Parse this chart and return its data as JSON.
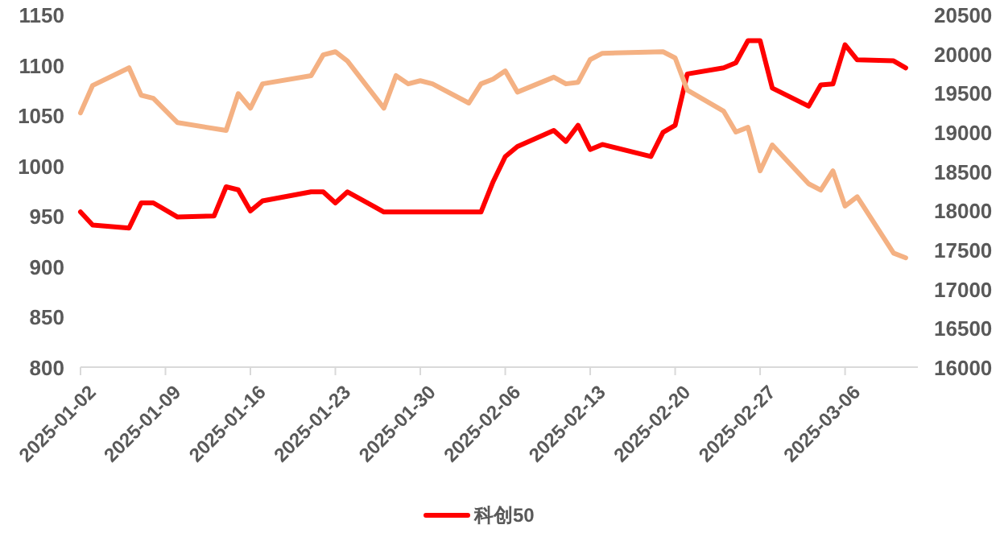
{
  "chart_data": {
    "type": "line",
    "legend": "bottom",
    "grid": false,
    "marker": "none",
    "line_style": "solid",
    "xlim": [
      "2025-01-02",
      "2025-03-12"
    ],
    "xticks": [
      "2025-01-02",
      "2025-01-09",
      "2025-01-16",
      "2025-01-23",
      "2025-01-30",
      "2025-02-06",
      "2025-02-13",
      "2025-02-20",
      "2025-02-27",
      "2025-03-06"
    ],
    "ylim": [
      800,
      1150
    ],
    "yticks": [
      800,
      850,
      900,
      950,
      1000,
      1050,
      1100,
      1150
    ],
    "y2lim": [
      16000,
      20500
    ],
    "y2ticks": [
      16000,
      16500,
      17000,
      17500,
      18000,
      18500,
      19000,
      19500,
      20000,
      20500
    ],
    "series": [
      {
        "name": "科创50",
        "color": "#ff0000",
        "axis": "y",
        "x": [
          "2025-01-02",
          "2025-01-03",
          "2025-01-06",
          "2025-01-07",
          "2025-01-08",
          "2025-01-10",
          "2025-01-13",
          "2025-01-14",
          "2025-01-15",
          "2025-01-16",
          "2025-01-17",
          "2025-01-21",
          "2025-01-22",
          "2025-01-23",
          "2025-01-24",
          "2025-01-27",
          "2025-02-04",
          "2025-02-05",
          "2025-02-06",
          "2025-02-07",
          "2025-02-10",
          "2025-02-11",
          "2025-02-12",
          "2025-02-13",
          "2025-02-14",
          "2025-02-18",
          "2025-02-19",
          "2025-02-20",
          "2025-02-21",
          "2025-02-24",
          "2025-02-25",
          "2025-02-26",
          "2025-02-27",
          "2025-02-28",
          "2025-03-03",
          "2025-03-04",
          "2025-03-05",
          "2025-03-06",
          "2025-03-07",
          "2025-03-10",
          "2025-03-11"
        ],
        "values": [
          954,
          941,
          938,
          963,
          963,
          949,
          950,
          979,
          976,
          955,
          965,
          974,
          974,
          963,
          974,
          954,
          954,
          984,
          1009,
          1019,
          1035,
          1024,
          1040,
          1016,
          1021,
          1009,
          1033,
          1040,
          1091,
          1097,
          1102,
          1124,
          1124,
          1077,
          1059,
          1080,
          1081,
          1120,
          1105,
          1104,
          1097
        ]
      },
      {
        "color": "#f4b183",
        "axis": "y2",
        "x": [
          "2025-01-02",
          "2025-01-03",
          "2025-01-06",
          "2025-01-07",
          "2025-01-08",
          "2025-01-10",
          "2025-01-14",
          "2025-01-15",
          "2025-01-16",
          "2025-01-17",
          "2025-01-21",
          "2025-01-22",
          "2025-01-23",
          "2025-01-24",
          "2025-01-27",
          "2025-01-28",
          "2025-01-29",
          "2025-01-30",
          "2025-01-31",
          "2025-02-03",
          "2025-02-04",
          "2025-02-05",
          "2025-02-06",
          "2025-02-07",
          "2025-02-10",
          "2025-02-11",
          "2025-02-12",
          "2025-02-13",
          "2025-02-14",
          "2025-02-19",
          "2025-02-20",
          "2025-02-21",
          "2025-02-24",
          "2025-02-25",
          "2025-02-26",
          "2025-02-27",
          "2025-02-28",
          "2025-03-03",
          "2025-03-04",
          "2025-03-05",
          "2025-03-06",
          "2025-03-07",
          "2025-03-10",
          "2025-03-11"
        ],
        "values": [
          19245,
          19595,
          19820,
          19470,
          19430,
          19120,
          19020,
          19490,
          19305,
          19615,
          19720,
          19985,
          20025,
          19905,
          19305,
          19720,
          19615,
          19655,
          19615,
          19370,
          19615,
          19675,
          19780,
          19510,
          19700,
          19615,
          19635,
          19925,
          20005,
          20025,
          19945,
          19535,
          19265,
          19000,
          19060,
          18505,
          18835,
          18340,
          18260,
          18505,
          18055,
          18175,
          17455,
          17395
        ]
      }
    ]
  }
}
